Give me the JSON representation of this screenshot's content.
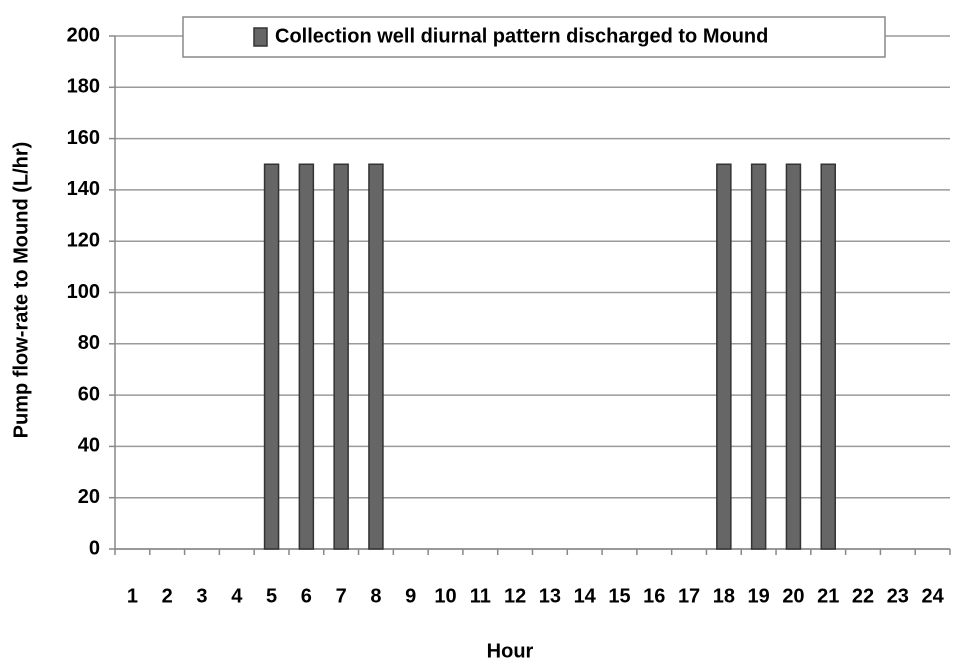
{
  "chart_data": {
    "type": "bar",
    "ylabel": "Pump flow-rate to Mound (L/hr)",
    "xlabel": "Hour",
    "categories": [
      "1",
      "2",
      "3",
      "4",
      "5",
      "6",
      "7",
      "8",
      "9",
      "10",
      "11",
      "12",
      "13",
      "14",
      "15",
      "16",
      "17",
      "18",
      "19",
      "20",
      "21",
      "22",
      "23",
      "24"
    ],
    "series": [
      {
        "name": "Collection well diurnal pattern discharged to Mound",
        "color": "#666666",
        "values": [
          0,
          0,
          0,
          0,
          150,
          150,
          150,
          150,
          0,
          0,
          0,
          0,
          0,
          0,
          0,
          0,
          0,
          150,
          150,
          150,
          150,
          0,
          0,
          0
        ]
      }
    ],
    "ylim": [
      0,
      200
    ],
    "yticks": [
      0,
      20,
      40,
      60,
      80,
      100,
      120,
      140,
      160,
      180,
      200
    ],
    "grid": true,
    "legend": "top"
  }
}
